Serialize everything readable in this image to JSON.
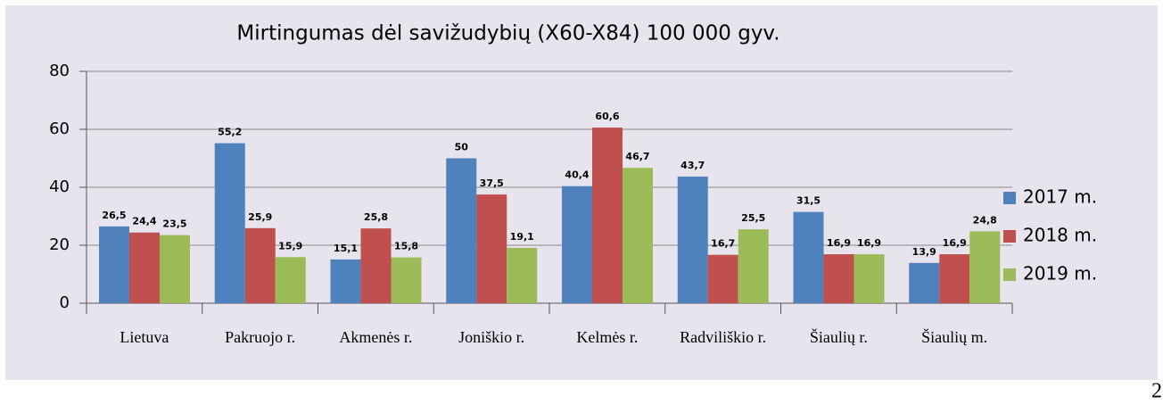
{
  "chart_data": {
    "type": "bar",
    "title": "Mirtingumas dėl savižudybių (X60-X84) 100 000 gyv.",
    "categories": [
      "Lietuva",
      "Pakruojo r.",
      "Akmenės r.",
      "Joniškio r.",
      "Kelmės r.",
      "Radviliškio r.",
      "Šiaulių r.",
      "Šiaulių m."
    ],
    "series": [
      {
        "name": "2017 m.",
        "color": "#4f81bd",
        "values": [
          26.5,
          55.2,
          15.1,
          50,
          40.4,
          43.7,
          31.5,
          13.9
        ],
        "value_labels": [
          "26,5",
          "55,2",
          "15,1",
          "50",
          "40,4",
          "43,7",
          "31,5",
          "13,9"
        ]
      },
      {
        "name": "2018 m.",
        "color": "#c0504d",
        "values": [
          24.4,
          25.9,
          25.8,
          37.5,
          60.6,
          16.7,
          16.9,
          16.9
        ],
        "value_labels": [
          "24,4",
          "25,9",
          "25,8",
          "37,5",
          "60,6",
          "16,7",
          "16,9",
          "16,9"
        ]
      },
      {
        "name": "2019 m.",
        "color": "#9bbb59",
        "values": [
          23.5,
          15.9,
          15.8,
          19.1,
          46.7,
          25.5,
          16.9,
          24.8
        ],
        "value_labels": [
          "23,5",
          "15,9",
          "15,8",
          "19,1",
          "46,7",
          "25,5",
          "16,9",
          "24,8"
        ]
      }
    ],
    "ylim": [
      0,
      80
    ],
    "yticks": [
      0,
      20,
      40,
      60,
      80
    ],
    "grid": true,
    "legend": "right"
  },
  "footer_text": "2"
}
